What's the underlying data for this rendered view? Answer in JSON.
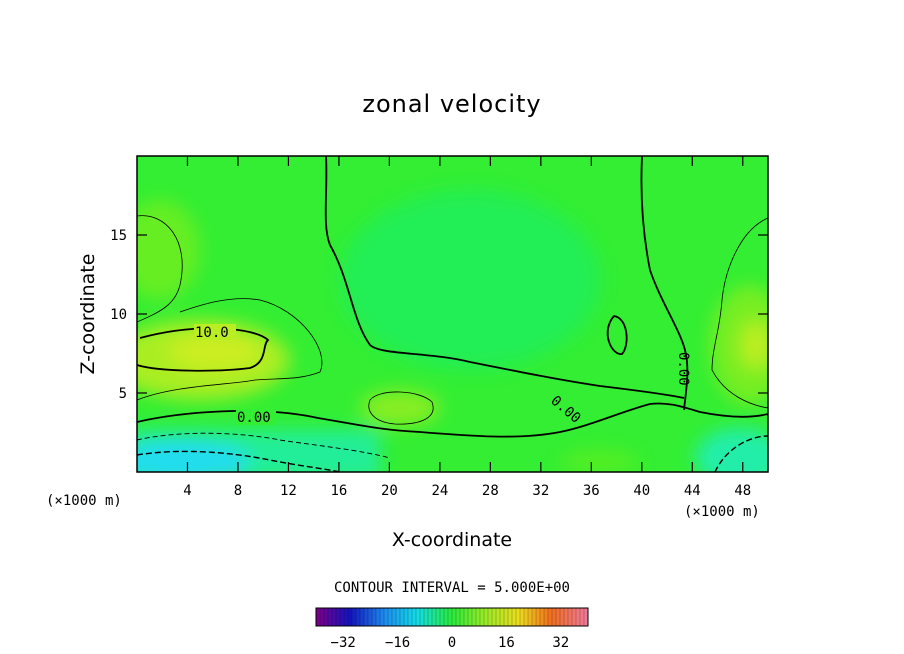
{
  "chart_data": {
    "type": "heatmap",
    "title": "zonal velocity",
    "xlabel": "X-coordinate",
    "ylabel": "Z-coordinate",
    "x_unit_note": "(×1000 m)",
    "y_unit_note": "(×1000 m)",
    "xlim": [
      0,
      50
    ],
    "ylim": [
      0,
      20
    ],
    "x_ticks": [
      "4",
      "8",
      "12",
      "16",
      "20",
      "24",
      "28",
      "32",
      "36",
      "40",
      "44",
      "48"
    ],
    "y_ticks": [
      "5",
      "10",
      "15"
    ],
    "contour_interval_label": "CONTOUR INTERVAL = 5.000E+00",
    "contour_labels": [
      "10.0",
      "0.00",
      "0.00",
      "0.00"
    ],
    "colorbar": {
      "range": [
        -40,
        40
      ],
      "ticks": [
        "−32",
        "−16",
        "0",
        "16",
        "32"
      ]
    },
    "colors": {
      "background_field": "#33ee33",
      "positive_max": "#ccee22",
      "negative_min": "#22ddee"
    }
  }
}
